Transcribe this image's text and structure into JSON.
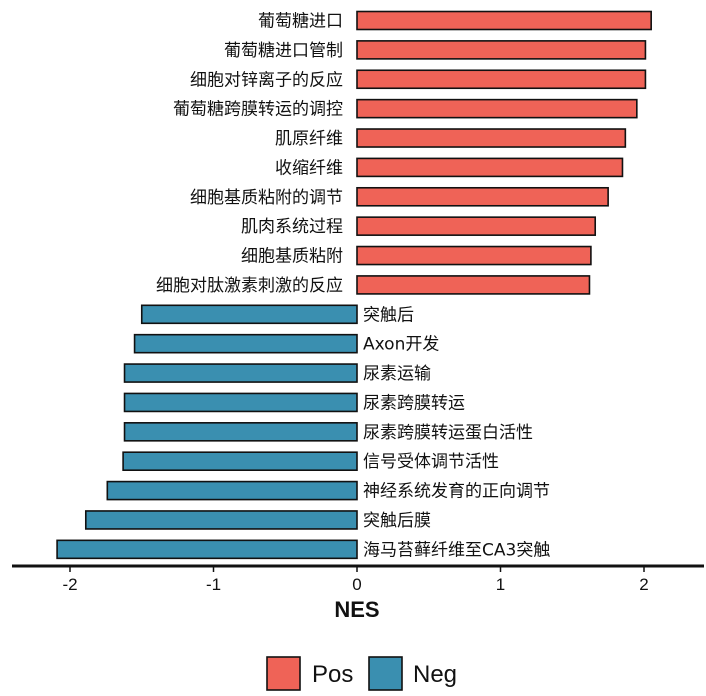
{
  "chart_data": {
    "type": "bar",
    "orientation": "horizontal",
    "xlabel": "NES",
    "xlim": [
      -2.4,
      2.4
    ],
    "xticks": [
      -2,
      -1,
      0,
      1,
      2
    ],
    "xtick_labels": [
      "-2",
      "-1",
      "0",
      "1",
      "2"
    ],
    "grid": false,
    "legend_position": "bottom",
    "colors": {
      "Pos": "#EF6357",
      "Neg": "#3A8FB0"
    },
    "legend": [
      {
        "key": "Pos",
        "label": "Pos"
      },
      {
        "key": "Neg",
        "label": "Neg"
      }
    ],
    "bars": [
      {
        "label": "葡萄糖进口",
        "value": 2.05,
        "group": "Pos"
      },
      {
        "label": "葡萄糖进口管制",
        "value": 2.01,
        "group": "Pos"
      },
      {
        "label": "细胞对锌离子的反应",
        "value": 2.01,
        "group": "Pos"
      },
      {
        "label": "葡萄糖跨膜转运的调控",
        "value": 1.95,
        "group": "Pos"
      },
      {
        "label": "肌原纤维",
        "value": 1.87,
        "group": "Pos"
      },
      {
        "label": "收缩纤维",
        "value": 1.85,
        "group": "Pos"
      },
      {
        "label": "细胞基质粘附的调节",
        "value": 1.75,
        "group": "Pos"
      },
      {
        "label": "肌肉系统过程",
        "value": 1.66,
        "group": "Pos"
      },
      {
        "label": "细胞基质粘附",
        "value": 1.63,
        "group": "Pos"
      },
      {
        "label": "细胞对肽激素刺激的反应",
        "value": 1.62,
        "group": "Pos"
      },
      {
        "label": "突触后",
        "value": -1.5,
        "group": "Neg"
      },
      {
        "label": "Axon开发",
        "value": -1.55,
        "group": "Neg"
      },
      {
        "label": "尿素运输",
        "value": -1.62,
        "group": "Neg"
      },
      {
        "label": "尿素跨膜转运",
        "value": -1.62,
        "group": "Neg"
      },
      {
        "label": "尿素跨膜转运蛋白活性",
        "value": -1.62,
        "group": "Neg"
      },
      {
        "label": "信号受体调节活性",
        "value": -1.63,
        "group": "Neg"
      },
      {
        "label": "神经系统发育的正向调节",
        "value": -1.74,
        "group": "Neg"
      },
      {
        "label": "突触后膜",
        "value": -1.89,
        "group": "Neg"
      },
      {
        "label": "海马苔藓纤维至CA3突触",
        "value": -2.09,
        "group": "Neg"
      }
    ]
  }
}
